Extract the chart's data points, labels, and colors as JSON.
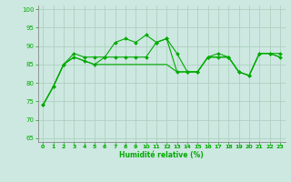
{
  "xlabel": "Humidité relative (%)",
  "xlim": [
    -0.5,
    23.5
  ],
  "ylim": [
    64,
    101
  ],
  "yticks": [
    65,
    70,
    75,
    80,
    85,
    90,
    95,
    100
  ],
  "xticks": [
    0,
    1,
    2,
    3,
    4,
    5,
    6,
    7,
    8,
    9,
    10,
    11,
    12,
    13,
    14,
    15,
    16,
    17,
    18,
    19,
    20,
    21,
    22,
    23
  ],
  "bg_color": "#cce8e0",
  "grid_color": "#aaccbb",
  "line_color": "#00aa00",
  "line1": [
    74,
    79,
    85,
    88,
    87,
    87,
    87,
    91,
    92,
    91,
    93,
    91,
    92,
    88,
    83,
    83,
    87,
    88,
    87,
    83,
    82,
    88,
    88,
    88
  ],
  "line2": [
    74,
    79,
    85,
    87,
    86,
    85,
    87,
    87,
    87,
    87,
    87,
    91,
    92,
    83,
    83,
    83,
    87,
    87,
    87,
    83,
    82,
    88,
    88,
    87
  ],
  "line3": [
    74,
    79,
    85,
    87,
    86,
    85,
    85,
    85,
    85,
    85,
    85,
    85,
    85,
    83,
    83,
    83,
    87,
    87,
    87,
    83,
    82,
    88,
    88,
    87
  ]
}
